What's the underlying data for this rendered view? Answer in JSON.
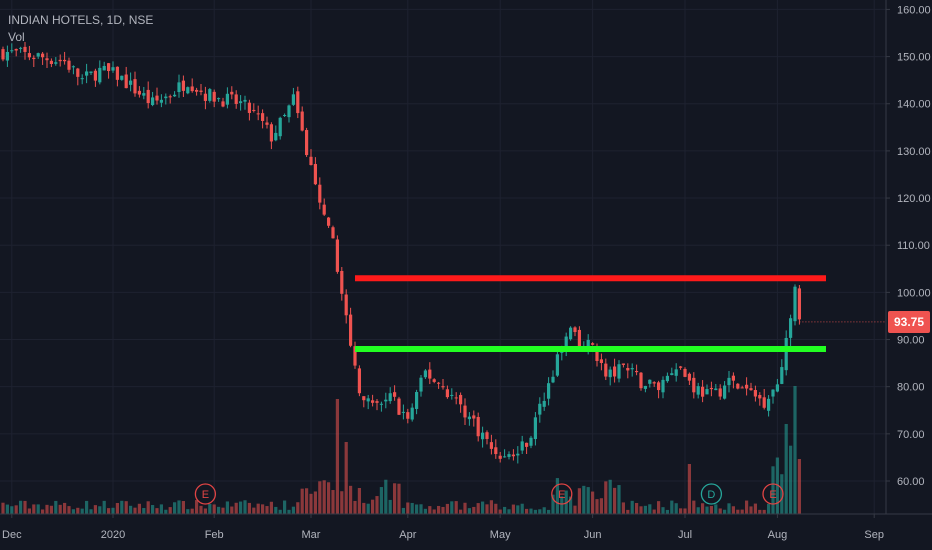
{
  "chart_data": {
    "type": "candlestick",
    "title": "INDIAN HOTELS, 1D, NSE",
    "volume_label": "Vol",
    "last_price": "93.75",
    "y_ticks": [
      "160.00",
      "150.00",
      "140.00",
      "130.00",
      "120.00",
      "110.00",
      "100.00",
      "90.00",
      "80.00",
      "70.00",
      "60.00"
    ],
    "x_ticks": [
      "Dec",
      "2020",
      "Feb",
      "Mar",
      "Apr",
      "May",
      "Jun",
      "Jul",
      "Aug",
      "Sep"
    ],
    "ylim": [
      53,
      162
    ],
    "grid": true,
    "colors": {
      "background": "#131722",
      "up": "#26a69a",
      "down": "#ef5350",
      "resistance_line": "#ff1a1a",
      "support_line": "#22ff22",
      "axis_text": "#b2b5be",
      "event_marker": "#e04444",
      "dividend_marker": "#26a69a"
    },
    "resistance_level": 103,
    "support_level": 88,
    "event_markers": [
      {
        "label": "E",
        "type": "earnings",
        "date_index": 46
      },
      {
        "label": "E",
        "type": "earnings",
        "date_index": 127
      },
      {
        "label": "D",
        "type": "dividend",
        "date_index": 161
      },
      {
        "label": "E",
        "type": "earnings",
        "date_index": 175
      }
    ],
    "close_series": [
      [
        0,
        151
      ],
      [
        8,
        150
      ],
      [
        14,
        149
      ],
      [
        18,
        145
      ],
      [
        22,
        147
      ],
      [
        26,
        146
      ],
      [
        30,
        143
      ],
      [
        34,
        140
      ],
      [
        38,
        142
      ],
      [
        42,
        145
      ],
      [
        46,
        142
      ],
      [
        50,
        141
      ],
      [
        54,
        140
      ],
      [
        58,
        137
      ],
      [
        61,
        133
      ],
      [
        64,
        137
      ],
      [
        66,
        141
      ],
      [
        69,
        130
      ],
      [
        72,
        118
      ],
      [
        75,
        110
      ],
      [
        77,
        101
      ],
      [
        79,
        88
      ],
      [
        81,
        80
      ],
      [
        84,
        75
      ],
      [
        88,
        78
      ],
      [
        92,
        73
      ],
      [
        96,
        83
      ],
      [
        100,
        80
      ],
      [
        104,
        76
      ],
      [
        108,
        71
      ],
      [
        111,
        67
      ],
      [
        114,
        65
      ],
      [
        117,
        66
      ],
      [
        120,
        70
      ],
      [
        123,
        78
      ],
      [
        126,
        86
      ],
      [
        129,
        92
      ],
      [
        131,
        88
      ],
      [
        134,
        89
      ],
      [
        137,
        82
      ],
      [
        141,
        84
      ],
      [
        145,
        81
      ],
      [
        149,
        80
      ],
      [
        153,
        85
      ],
      [
        157,
        80
      ],
      [
        161,
        78
      ],
      [
        165,
        81
      ],
      [
        169,
        79
      ],
      [
        173,
        77
      ],
      [
        176,
        81
      ],
      [
        178,
        90
      ],
      [
        180,
        100
      ],
      [
        181,
        94
      ]
    ]
  }
}
